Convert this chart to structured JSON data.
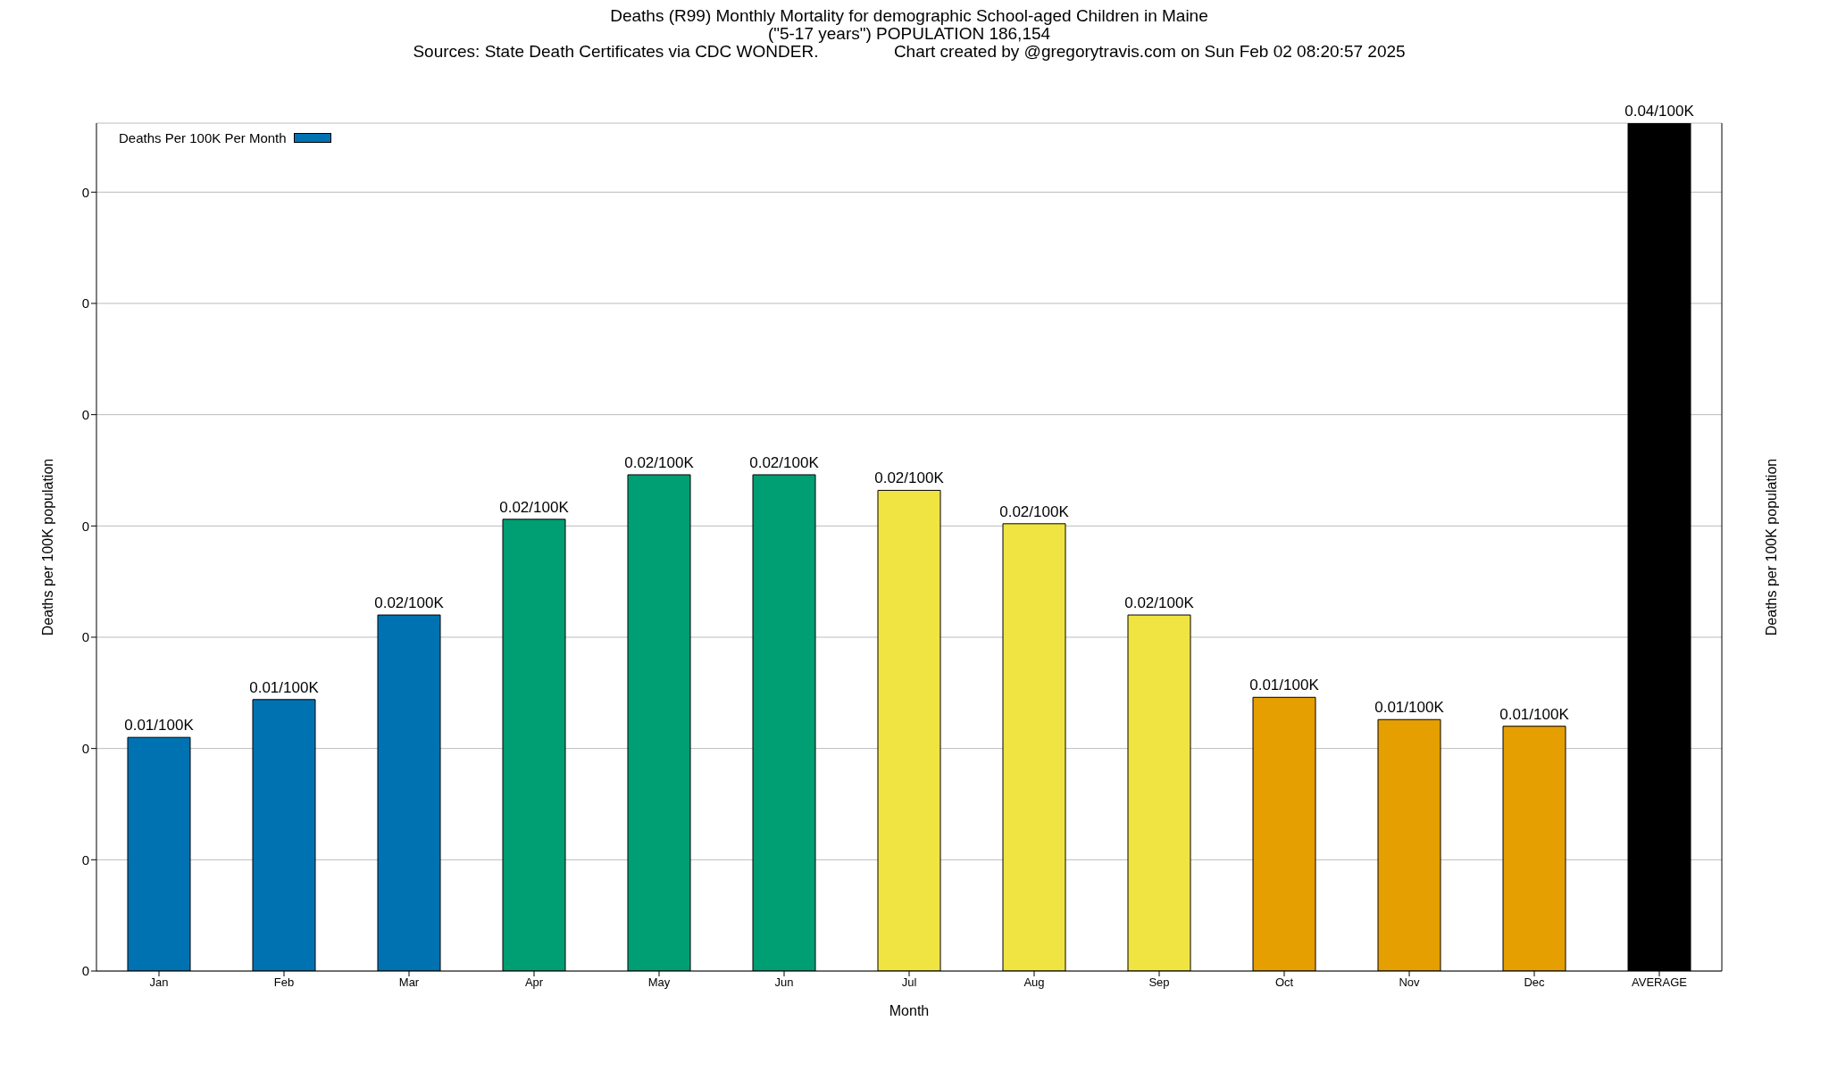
{
  "chart_data": {
    "type": "bar",
    "title": "Deaths (R99) Monthly Mortality for demographic School-aged Children in Maine",
    "subtitle": "(\"5-17 years\") POPULATION 186,154",
    "annotations": [
      "Sources: State Death Certificates via CDC WONDER.                Chart created by @gregorytravis.com on Sun Feb 02 08:20:57 2025"
    ],
    "xlabel": "Month",
    "ylabel": "Deaths per 100K population",
    "y2label": "Deaths per 100K population",
    "categories": [
      "Jan",
      "Feb",
      "Mar",
      "Apr",
      "May",
      "Jun",
      "Jul",
      "Aug",
      "Sep",
      "Oct",
      "Nov",
      "Dec",
      "AVERAGE"
    ],
    "series": [
      {
        "name": "Deaths Per 100K Per Month",
        "color": "#0072b2",
        "values": [
          0.0105,
          0.0122,
          0.016,
          0.0203,
          0.0223,
          0.0223,
          0.0216,
          0.0201,
          0.016,
          0.0123,
          0.0113,
          0.011,
          0.0381
        ],
        "colors": [
          "#0072b2",
          "#0072b2",
          "#0072b2",
          "#009e73",
          "#009e73",
          "#009e73",
          "#f0e442",
          "#f0e442",
          "#f0e442",
          "#e69f00",
          "#e69f00",
          "#e69f00",
          "#000000"
        ],
        "value_labels": [
          "0.01/100K",
          "0.01/100K",
          "0.02/100K",
          "0.02/100K",
          "0.02/100K",
          "0.02/100K",
          "0.02/100K",
          "0.02/100K",
          "0.02/100K",
          "0.01/100K",
          "0.01/100K",
          "0.01/100K",
          "0.04/100K"
        ]
      }
    ],
    "ylim": [
      0,
      0.0381
    ],
    "yticks": [
      {
        "value": 0,
        "label": "0"
      },
      {
        "value": 0.005,
        "label": "0"
      },
      {
        "value": 0.01,
        "label": "0"
      },
      {
        "value": 0.015,
        "label": "0"
      },
      {
        "value": 0.02,
        "label": "0"
      },
      {
        "value": 0.025,
        "label": "0"
      },
      {
        "value": 0.03,
        "label": "0"
      },
      {
        "value": 0.035,
        "label": "0"
      }
    ],
    "grid": "y",
    "legend": "top left"
  }
}
